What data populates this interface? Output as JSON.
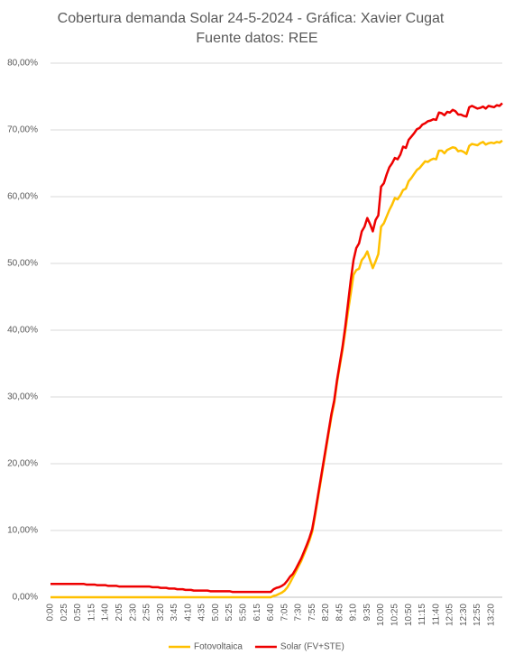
{
  "chart_data": {
    "type": "line",
    "title": "Cobertura demanda Solar 24-5-2024 - Gráfica:  Xavier Cugat",
    "subtitle": "Fuente datos: REE",
    "ylim": [
      0,
      80
    ],
    "yticks": [
      {
        "value": 0,
        "label": "0,00%"
      },
      {
        "value": 10,
        "label": "10,00%"
      },
      {
        "value": 20,
        "label": "20,00%"
      },
      {
        "value": 30,
        "label": "30,00%"
      },
      {
        "value": 40,
        "label": "40,00%"
      },
      {
        "value": 50,
        "label": "50,00%"
      },
      {
        "value": 60,
        "label": "60,00%"
      },
      {
        "value": 70,
        "label": "70,00%"
      },
      {
        "value": 80,
        "label": "80,00%"
      }
    ],
    "grid": true,
    "legend": "bottom",
    "categories": [
      "0:00",
      null,
      null,
      null,
      null,
      "0:25",
      null,
      null,
      null,
      null,
      "0:50",
      null,
      null,
      null,
      null,
      "1:15",
      null,
      null,
      null,
      null,
      "1:40",
      null,
      null,
      null,
      null,
      "2:05",
      null,
      null,
      null,
      null,
      "2:30",
      null,
      null,
      null,
      null,
      "2:55",
      null,
      null,
      null,
      null,
      "3:20",
      null,
      null,
      null,
      null,
      "3:45",
      null,
      null,
      null,
      null,
      "4:10",
      null,
      null,
      null,
      null,
      "4:35",
      null,
      null,
      null,
      null,
      "5:00",
      null,
      null,
      null,
      null,
      "5:25",
      null,
      null,
      null,
      null,
      "5:50",
      null,
      null,
      null,
      null,
      "6:15",
      null,
      null,
      null,
      null,
      "6:40",
      null,
      null,
      null,
      null,
      "7:05",
      null,
      null,
      null,
      null,
      "7:30",
      null,
      null,
      null,
      null,
      "7:55",
      null,
      null,
      null,
      null,
      "8:20",
      null,
      null,
      null,
      null,
      "8:45",
      null,
      null,
      null,
      null,
      "9:10",
      null,
      null,
      null,
      null,
      "9:35",
      null,
      null,
      null,
      null,
      "10:00",
      null,
      null,
      null,
      null,
      "10:25",
      null,
      null,
      null,
      null,
      "10:50",
      null,
      null,
      null,
      null,
      "11:15",
      null,
      null,
      null,
      null,
      "11:40",
      null,
      null,
      null,
      null,
      "12:05",
      null,
      null,
      null,
      null,
      "12:30",
      null,
      null,
      null,
      null,
      "12:55",
      null,
      null,
      null,
      null,
      "13:20",
      null,
      null,
      null,
      null
    ],
    "series": [
      {
        "name": "Fotovoltaica",
        "color": "#FFC000",
        "values": [
          0,
          0,
          0,
          0,
          0,
          0,
          0,
          0,
          0,
          0,
          0,
          0,
          0,
          0,
          0,
          0,
          0,
          0,
          0,
          0,
          0,
          0,
          0,
          0,
          0,
          0,
          0,
          0,
          0,
          0,
          0,
          0,
          0,
          0,
          0,
          0,
          0,
          0,
          0,
          0,
          0,
          0,
          0,
          0,
          0,
          0,
          0,
          0,
          0,
          0,
          0,
          0,
          0,
          0,
          0,
          0,
          0,
          0,
          0,
          0,
          0,
          0,
          0,
          0,
          0,
          0,
          0,
          0,
          0,
          0,
          0,
          0,
          0,
          0,
          0,
          0,
          0,
          0,
          0,
          0,
          0,
          0.2,
          0.3,
          0.5,
          0.7,
          1.0,
          1.5,
          2.2,
          3.0,
          3.8,
          4.6,
          5.4,
          6.4,
          7.4,
          8.5,
          9.8,
          12.1,
          14.6,
          17.1,
          19.6,
          22.1,
          24.6,
          27.1,
          29.1,
          32.1,
          34.6,
          37.0,
          39.8,
          42.8,
          45.5,
          48.3,
          49.0,
          49.2,
          50.5,
          51.0,
          51.8,
          50.5,
          49.3,
          50.3,
          51.4,
          55.5,
          56.0,
          57.0,
          58.0,
          58.8,
          59.8,
          59.6,
          60.2,
          61.0,
          61.2,
          62.3,
          62.8,
          63.4,
          64.0,
          64.3,
          64.8,
          65.3,
          65.2,
          65.5,
          65.7,
          65.6,
          66.9,
          66.9,
          66.5,
          67.0,
          67.2,
          67.4,
          67.3,
          66.8,
          66.9,
          66.7,
          66.4,
          67.6,
          67.9,
          67.8,
          67.7,
          68.0,
          68.2,
          67.8,
          68.0,
          68.1,
          68.0,
          68.2,
          68.1,
          68.4
        ]
      },
      {
        "name": "Solar (FV+STE)",
        "color": "#EE0000",
        "values": [
          2.0,
          2.0,
          2.0,
          2.0,
          2.0,
          2.0,
          2.0,
          2.0,
          2.0,
          2.0,
          2.0,
          2.0,
          2.0,
          1.9,
          1.9,
          1.9,
          1.9,
          1.8,
          1.8,
          1.8,
          1.8,
          1.7,
          1.7,
          1.7,
          1.7,
          1.6,
          1.6,
          1.6,
          1.6,
          1.6,
          1.6,
          1.6,
          1.6,
          1.6,
          1.6,
          1.6,
          1.6,
          1.5,
          1.5,
          1.5,
          1.4,
          1.4,
          1.4,
          1.3,
          1.3,
          1.3,
          1.2,
          1.2,
          1.2,
          1.1,
          1.1,
          1.1,
          1.0,
          1.0,
          1.0,
          1.0,
          1.0,
          1.0,
          0.9,
          0.9,
          0.9,
          0.9,
          0.9,
          0.9,
          0.9,
          0.9,
          0.8,
          0.8,
          0.8,
          0.8,
          0.8,
          0.8,
          0.8,
          0.8,
          0.8,
          0.8,
          0.8,
          0.8,
          0.8,
          0.8,
          0.8,
          1.2,
          1.4,
          1.5,
          1.7,
          2.0,
          2.5,
          3.1,
          3.5,
          4.2,
          5.0,
          5.8,
          6.8,
          7.8,
          8.9,
          10.2,
          12.5,
          15.0,
          17.5,
          20.0,
          22.5,
          25.0,
          27.5,
          29.5,
          32.5,
          35.0,
          37.5,
          40.5,
          44.0,
          47.5,
          50.5,
          52.3,
          53.0,
          54.8,
          55.5,
          56.8,
          55.9,
          54.8,
          56.5,
          57.2,
          61.5,
          62.0,
          63.3,
          64.4,
          65.0,
          65.8,
          65.6,
          66.3,
          67.5,
          67.3,
          68.5,
          69.0,
          69.5,
          70.1,
          70.3,
          70.8,
          71.0,
          71.3,
          71.4,
          71.6,
          71.5,
          72.6,
          72.5,
          72.2,
          72.7,
          72.6,
          73.0,
          72.8,
          72.3,
          72.3,
          72.1,
          72.0,
          73.4,
          73.6,
          73.4,
          73.2,
          73.3,
          73.5,
          73.2,
          73.6,
          73.5,
          73.4,
          73.7,
          73.6,
          74.0
        ]
      }
    ]
  }
}
